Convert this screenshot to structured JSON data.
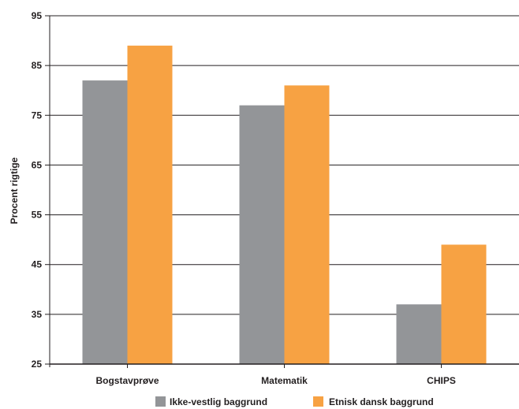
{
  "chart_data": {
    "type": "bar",
    "title": "",
    "xlabel": "",
    "ylabel": "Procent rigtige",
    "ylim": [
      25,
      95
    ],
    "yticks": [
      25,
      35,
      45,
      55,
      65,
      75,
      85,
      95
    ],
    "grid": true,
    "legend_position": "bottom",
    "categories": [
      "Bogstavprøve",
      "Matematik",
      "CHIPS"
    ],
    "series": [
      {
        "name": "Ikke-vestlig baggrund",
        "color": "#939598",
        "values": [
          82,
          77,
          37
        ]
      },
      {
        "name": "Etnisk dansk baggrund",
        "color": "#f7a243",
        "values": [
          89,
          81,
          49
        ]
      }
    ]
  }
}
